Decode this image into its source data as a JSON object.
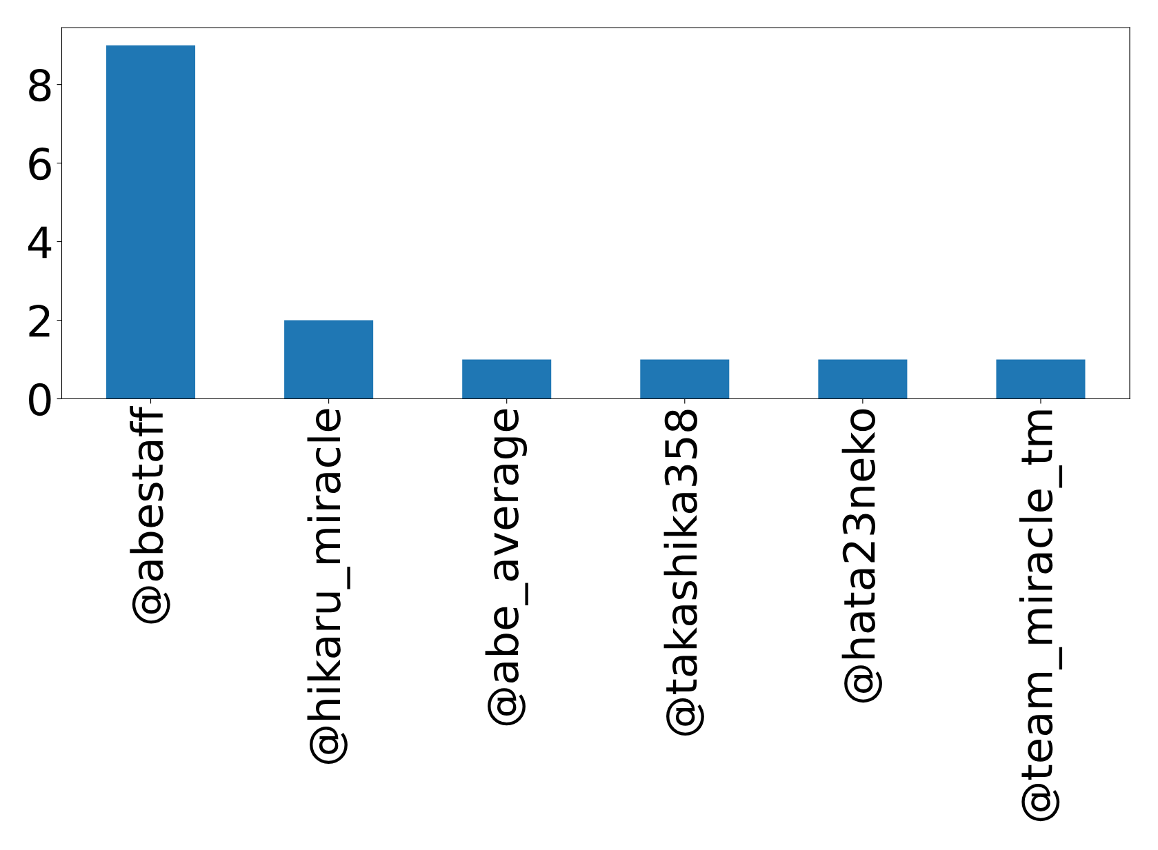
{
  "chart_data": {
    "type": "bar",
    "categories": [
      "@abestaff",
      "@hikaru_miracle",
      "@abe_average",
      "@takashika358",
      "@hata23neko",
      "@team_miracle_tm"
    ],
    "values": [
      9,
      2,
      1,
      1,
      1,
      1
    ],
    "color": "#1f77b4",
    "ylim": [
      0,
      9.45
    ],
    "yticks": [
      0,
      2,
      4,
      6,
      8
    ],
    "grid": false,
    "legend": false
  }
}
